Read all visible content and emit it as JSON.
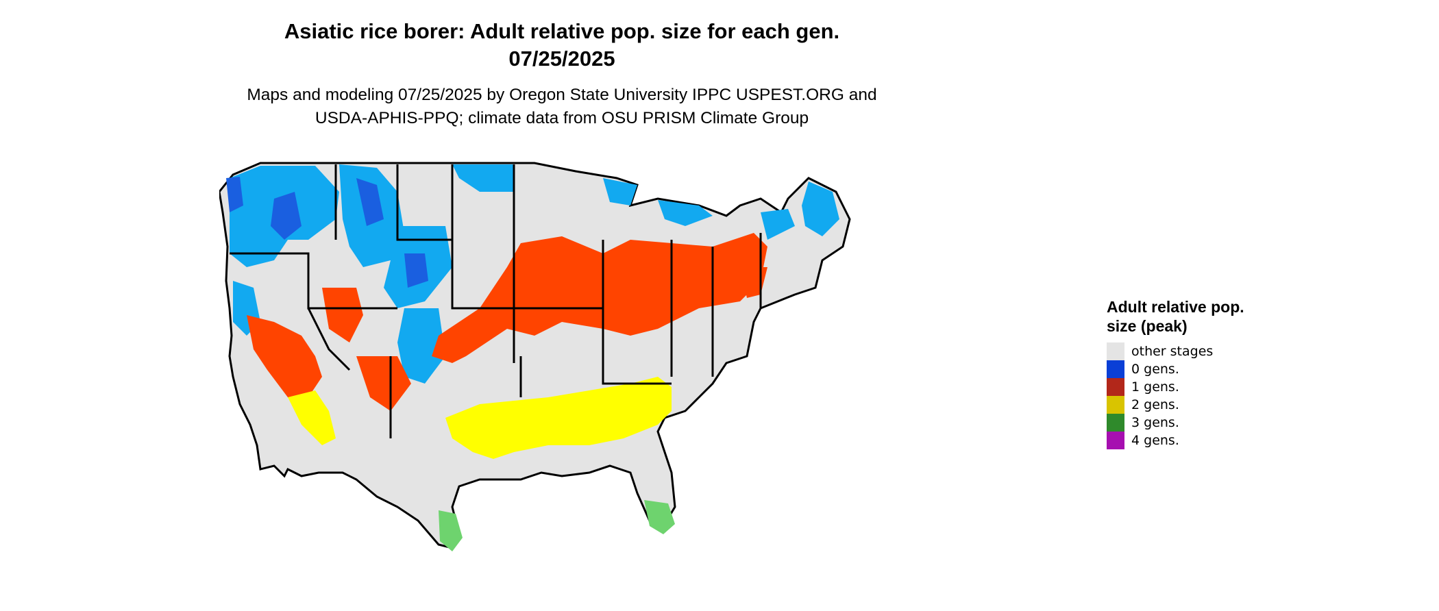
{
  "title": {
    "line1": "Asiatic rice borer: Adult relative pop. size for each gen.",
    "line2": "07/25/2025"
  },
  "subtitle": {
    "line1": "Maps and modeling 07/25/2025 by Oregon State University IPPC USPEST.ORG and",
    "line2": "USDA-APHIS-PPQ; climate data from OSU PRISM Climate Group"
  },
  "legend": {
    "title": "Adult relative pop. size (peak)",
    "items": [
      {
        "label": "other stages",
        "color": "#e4e4e4"
      },
      {
        "label": "0 gens.",
        "color": "#0a3fd6"
      },
      {
        "label": "1 gens.",
        "color": "#b2271a"
      },
      {
        "label": "2 gens.",
        "color": "#d9c400"
      },
      {
        "label": "3 gens.",
        "color": "#2f8a2b"
      },
      {
        "label": "4 gens.",
        "color": "#a60fb0"
      }
    ]
  },
  "map_colors": {
    "land": "#e4e4e4",
    "zero_gen_light": "#12a9f0",
    "zero_gen_dark": "#1a5fe0",
    "one_gen": "#ff4400",
    "two_gen": "#ffff00",
    "three_gen": "#6ed36e",
    "border": "#000000"
  }
}
